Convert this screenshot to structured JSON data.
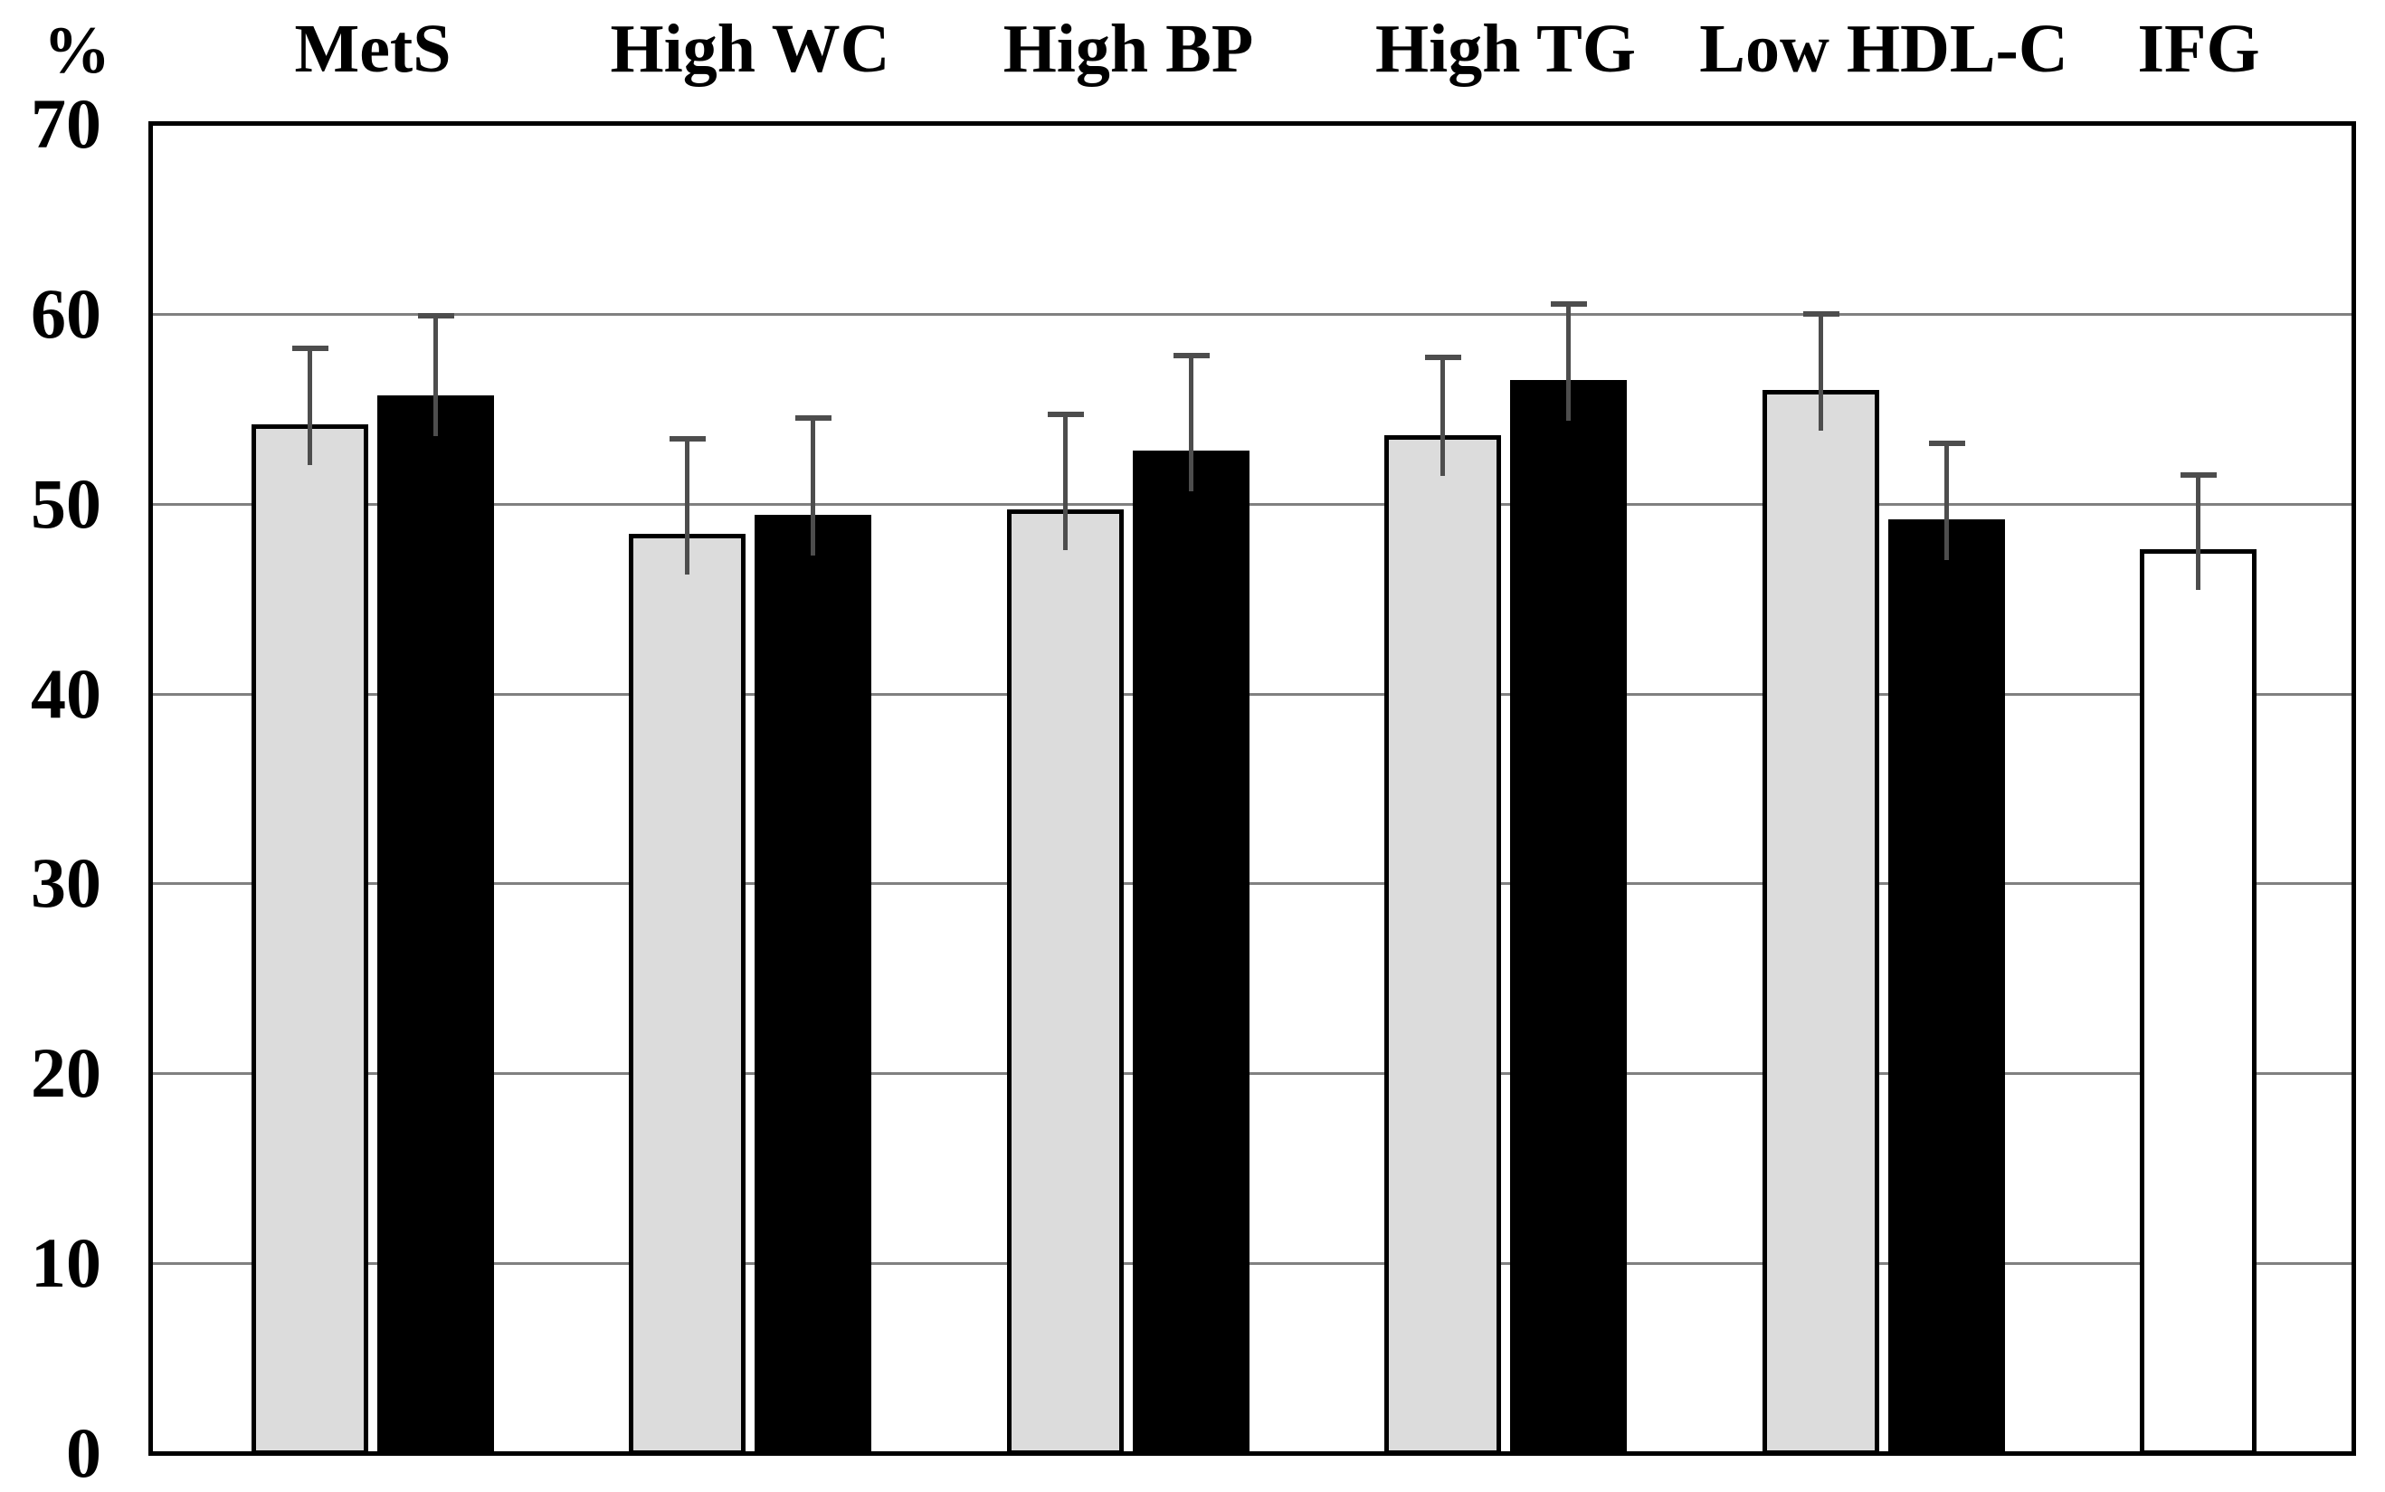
{
  "chart_data": {
    "type": "bar",
    "unit_label": "%",
    "ylim": [
      0,
      70
    ],
    "y_ticks_top_to_bottom": [
      70,
      60,
      50,
      40,
      30,
      20,
      10,
      0
    ],
    "grid": true,
    "legend": "none",
    "categories": [
      "MetS",
      "High WC",
      "High BP",
      "High TG",
      "Low HDL-C",
      "IFG"
    ],
    "series": [
      {
        "name": "gray",
        "slot": 0,
        "fill": "#dcdcdc",
        "values": [
          54.2,
          48.4,
          49.7,
          53.6,
          56.0,
          null
        ],
        "error_bar_tops": [
          58.2,
          53.4,
          54.7,
          57.7,
          60.0,
          null
        ]
      },
      {
        "name": "black",
        "slot": 1,
        "fill": "#000000",
        "values": [
          55.7,
          49.4,
          52.8,
          56.5,
          49.2,
          null
        ],
        "error_bar_tops": [
          59.9,
          54.5,
          57.8,
          60.5,
          53.2,
          null
        ]
      },
      {
        "name": "white",
        "slot": 0,
        "fill": "#ffffff",
        "values": [
          null,
          null,
          null,
          null,
          null,
          47.6
        ],
        "error_bar_tops": [
          null,
          null,
          null,
          null,
          null,
          51.5
        ]
      }
    ],
    "colors": {
      "bar_border": "#000000",
      "error_bar": "#4d4d4d",
      "gridline": "#808080",
      "axis_border": "#000000",
      "background": "#ffffff",
      "text": "#000000"
    }
  }
}
